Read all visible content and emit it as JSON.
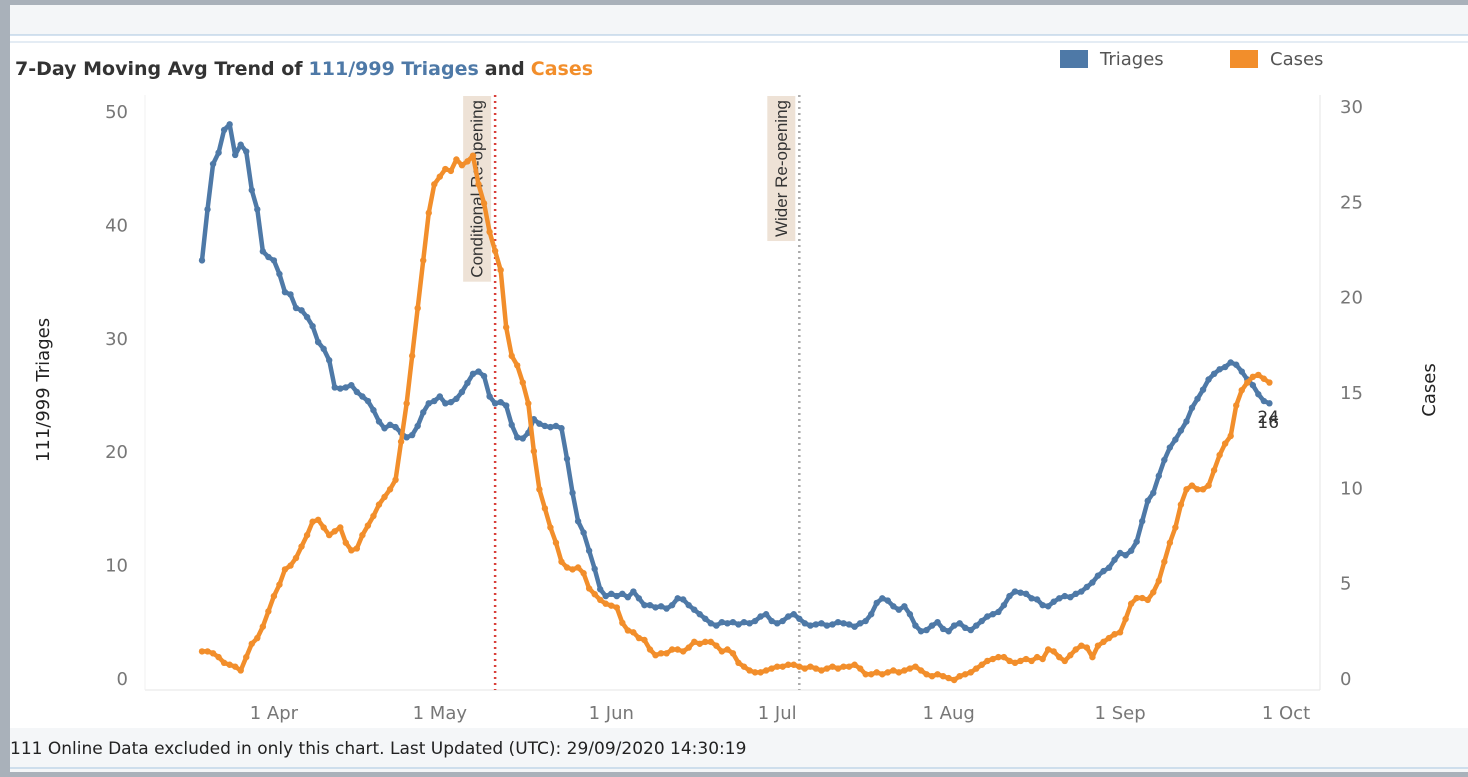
{
  "chart_data": {
    "type": "line",
    "title": [
      "7-Day Moving Avg Trend of",
      "111/999 Triages",
      "and",
      "Cases"
    ],
    "ylabel": "111/999 Triages",
    "y2label": "Cases",
    "footer": "111 Online Data excluded in only this chart. Last Updated (UTC): 29/09/2020 14:30:19",
    "categories": [
      "19 Mar",
      "20 Mar",
      "21 Mar",
      "22 Mar",
      "23 Mar",
      "24 Mar",
      "25 Mar",
      "26 Mar",
      "27 Mar",
      "28 Mar",
      "29 Mar",
      "30 Mar",
      "31 Mar",
      "1 Apr",
      "2 Apr",
      "3 Apr",
      "4 Apr",
      "5 Apr",
      "6 Apr",
      "7 Apr",
      "8 Apr",
      "9 Apr",
      "10 Apr",
      "11 Apr",
      "12 Apr",
      "13 Apr",
      "14 Apr",
      "15 Apr",
      "16 Apr",
      "17 Apr",
      "18 Apr",
      "19 Apr",
      "20 Apr",
      "21 Apr",
      "22 Apr",
      "23 Apr",
      "24 Apr",
      "25 Apr",
      "26 Apr",
      "27 Apr",
      "28 Apr",
      "29 Apr",
      "30 Apr",
      "1 May",
      "2 May",
      "3 May",
      "4 May",
      "5 May",
      "6 May",
      "7 May",
      "8 May",
      "9 May",
      "10 May",
      "11 May",
      "12 May",
      "13 May",
      "14 May",
      "15 May",
      "16 May",
      "17 May",
      "18 May",
      "19 May",
      "20 May",
      "21 May",
      "22 May",
      "23 May",
      "24 May",
      "25 May",
      "26 May",
      "27 May",
      "28 May",
      "29 May",
      "30 May",
      "31 May",
      "1 Jun",
      "2 Jun",
      "3 Jun",
      "4 Jun",
      "5 Jun",
      "6 Jun",
      "7 Jun",
      "8 Jun",
      "9 Jun",
      "10 Jun",
      "11 Jun",
      "12 Jun",
      "13 Jun",
      "14 Jun",
      "15 Jun",
      "16 Jun",
      "17 Jun",
      "18 Jun",
      "19 Jun",
      "20 Jun",
      "21 Jun",
      "22 Jun",
      "23 Jun",
      "24 Jun",
      "25 Jun",
      "26 Jun",
      "27 Jun",
      "28 Jun",
      "29 Jun",
      "30 Jun",
      "1 Jul",
      "2 Jul",
      "3 Jul",
      "4 Jul",
      "5 Jul",
      "6 Jul",
      "7 Jul",
      "8 Jul",
      "9 Jul",
      "10 Jul",
      "11 Jul",
      "12 Jul",
      "13 Jul",
      "14 Jul",
      "15 Jul",
      "16 Jul",
      "17 Jul",
      "18 Jul",
      "19 Jul",
      "20 Jul",
      "21 Jul",
      "22 Jul",
      "23 Jul",
      "24 Jul",
      "25 Jul",
      "26 Jul",
      "27 Jul",
      "28 Jul",
      "29 Jul",
      "30 Jul",
      "31 Jul",
      "1 Aug",
      "2 Aug",
      "3 Aug",
      "4 Aug",
      "5 Aug",
      "6 Aug",
      "7 Aug",
      "8 Aug",
      "9 Aug",
      "10 Aug",
      "11 Aug",
      "12 Aug",
      "13 Aug",
      "14 Aug",
      "15 Aug",
      "16 Aug",
      "17 Aug",
      "18 Aug",
      "19 Aug",
      "20 Aug",
      "21 Aug",
      "22 Aug",
      "23 Aug",
      "24 Aug",
      "25 Aug",
      "26 Aug",
      "27 Aug",
      "28 Aug",
      "29 Aug",
      "30 Aug",
      "31 Aug",
      "1 Sep",
      "2 Sep",
      "3 Sep",
      "4 Sep",
      "5 Sep",
      "6 Sep",
      "7 Sep",
      "8 Sep",
      "9 Sep",
      "10 Sep",
      "11 Sep",
      "12 Sep",
      "13 Sep",
      "14 Sep",
      "15 Sep",
      "16 Sep",
      "17 Sep",
      "18 Sep",
      "19 Sep",
      "20 Sep",
      "21 Sep",
      "22 Sep",
      "23 Sep",
      "24 Sep",
      "25 Sep",
      "26 Sep",
      "27 Sep",
      "28 Sep",
      "29 Sep",
      "30 Sep",
      "1 Oct"
    ],
    "series": [
      {
        "name": "Triages",
        "color": "#4e79a7",
        "axis": "y",
        "end_label": "24",
        "values": [
          37,
          41.5,
          45.5,
          46.5,
          48.5,
          49,
          46.3,
          47.2,
          46.6,
          43.2,
          41.5,
          37.8,
          37.3,
          37,
          35.8,
          34.2,
          34,
          32.8,
          32.6,
          32,
          31.2,
          29.8,
          29.2,
          28.2,
          25.8,
          25.7,
          25.8,
          26,
          25.4,
          25,
          24.6,
          23.8,
          22.8,
          22.2,
          22.5,
          22.3,
          21.8,
          21.4,
          21.6,
          22.4,
          23.6,
          24.4,
          24.6,
          25,
          24.4,
          24.5,
          24.8,
          25.4,
          26.2,
          27,
          27.2,
          26.8,
          25,
          24.4,
          24.5,
          24.2,
          22.5,
          21.4,
          21.3,
          21.8,
          23,
          22.6,
          22.4,
          22.3,
          22.4,
          22.2,
          19.5,
          16.5,
          14,
          13,
          11.4,
          9.8,
          8,
          7.4,
          7.6,
          7.4,
          7.6,
          7.3,
          7.8,
          7.2,
          6.6,
          6.6,
          6.4,
          6.5,
          6.3,
          6.6,
          7.2,
          7.1,
          6.6,
          6.2,
          5.8,
          5.4,
          5,
          4.8,
          5.1,
          5,
          5.1,
          4.9,
          5.1,
          5,
          5.2,
          5.6,
          5.8,
          5.2,
          5,
          5.2,
          5.6,
          5.8,
          5.4,
          5,
          4.8,
          4.9,
          5,
          4.8,
          4.9,
          5.1,
          5,
          4.9,
          4.7,
          5,
          5.2,
          5.8,
          6.8,
          7.2,
          7,
          6.5,
          6.2,
          6.5,
          5.8,
          4.8,
          4.3,
          4.4,
          4.8,
          5.1,
          4.5,
          4.3,
          4.8,
          5,
          4.6,
          4.4,
          4.8,
          5.2,
          5.6,
          5.8,
          6,
          6.6,
          7.4,
          7.8,
          7.7,
          7.6,
          7.2,
          7.1,
          6.6,
          6.5,
          6.9,
          7.2,
          7.4,
          7.3,
          7.6,
          7.8,
          8.2,
          8.6,
          9.2,
          9.6,
          9.9,
          10.6,
          11.2,
          11,
          11.4,
          12.2,
          14,
          15.8,
          16.5,
          18,
          19.4,
          20.5,
          21.2,
          22,
          22.8,
          24,
          24.8,
          25.6,
          26.5,
          27,
          27.4,
          27.6,
          28,
          27.8,
          27.2,
          26.5,
          26,
          25.2,
          24.6,
          24.4,
          null,
          null,
          null
        ]
      },
      {
        "name": "Cases",
        "color": "#f28e2b",
        "axis": "y2",
        "end_label": "16",
        "values": [
          1.5,
          1.5,
          1.4,
          1.2,
          0.9,
          0.8,
          0.7,
          0.5,
          1.2,
          1.9,
          2.2,
          2.8,
          3.6,
          4.4,
          5,
          5.8,
          6,
          6.4,
          7,
          7.6,
          8.3,
          8.4,
          8,
          7.6,
          7.8,
          8,
          7.2,
          6.8,
          6.9,
          7.6,
          8.1,
          8.6,
          9.2,
          9.6,
          10,
          10.5,
          12.5,
          14.5,
          17,
          19.5,
          22,
          24.5,
          26,
          26.4,
          26.8,
          26.7,
          27.3,
          27,
          27.2,
          27.5,
          26,
          25,
          23.5,
          22.5,
          21.5,
          18.5,
          17,
          16.5,
          15.6,
          14.5,
          12,
          10,
          9,
          8,
          7.2,
          6.2,
          5.9,
          5.8,
          5.9,
          5.6,
          4.8,
          4.5,
          4.2,
          4,
          3.9,
          3.8,
          3,
          2.6,
          2.5,
          2.2,
          2.1,
          1.6,
          1.3,
          1.4,
          1.4,
          1.6,
          1.6,
          1.5,
          1.7,
          2,
          1.9,
          2,
          2,
          1.8,
          1.5,
          1.6,
          1.4,
          0.9,
          0.7,
          0.5,
          0.4,
          0.4,
          0.5,
          0.6,
          0.7,
          0.7,
          0.8,
          0.8,
          0.7,
          0.6,
          0.7,
          0.6,
          0.5,
          0.6,
          0.7,
          0.6,
          0.7,
          0.7,
          0.8,
          0.6,
          0.3,
          0.3,
          0.4,
          0.3,
          0.4,
          0.5,
          0.4,
          0.5,
          0.6,
          0.7,
          0.5,
          0.3,
          0.2,
          0.3,
          0.2,
          0.1,
          0,
          0.2,
          0.3,
          0.4,
          0.6,
          0.8,
          1,
          1.1,
          1.2,
          1.2,
          1,
          0.9,
          1,
          1.1,
          1,
          1.2,
          1.1,
          1.6,
          1.5,
          1.2,
          1,
          1.3,
          1.6,
          1.8,
          1.7,
          1.2,
          1.8,
          2,
          2.2,
          2.4,
          2.5,
          3.2,
          4,
          4.3,
          4.3,
          4.2,
          4.6,
          5.2,
          6.2,
          7.2,
          8,
          9.2,
          10,
          10.2,
          10,
          10,
          10.2,
          11,
          11.8,
          12.4,
          12.8,
          14.4,
          15.2,
          15.6,
          15.9,
          16,
          15.8,
          15.6,
          null,
          null,
          null
        ]
      }
    ],
    "xticks": [
      "1 Apr",
      "1 May",
      "1 Jun",
      "1 Jul",
      "1 Aug",
      "1 Sep",
      "1 Oct"
    ],
    "ylim": [
      0,
      50
    ],
    "yticks": [
      0,
      10,
      20,
      30,
      40,
      50
    ],
    "y2lim": [
      0,
      30
    ],
    "y2ticks": [
      0,
      5,
      10,
      15,
      20,
      25,
      30
    ],
    "grid": false,
    "legend": "top-right",
    "annotations": [
      {
        "text": "Conditional Re-opening",
        "x": "11 May",
        "color": "#d9403a"
      },
      {
        "text": "Wider Re-opening",
        "x": "5 Jul",
        "color": "#aaaaaa"
      }
    ]
  }
}
